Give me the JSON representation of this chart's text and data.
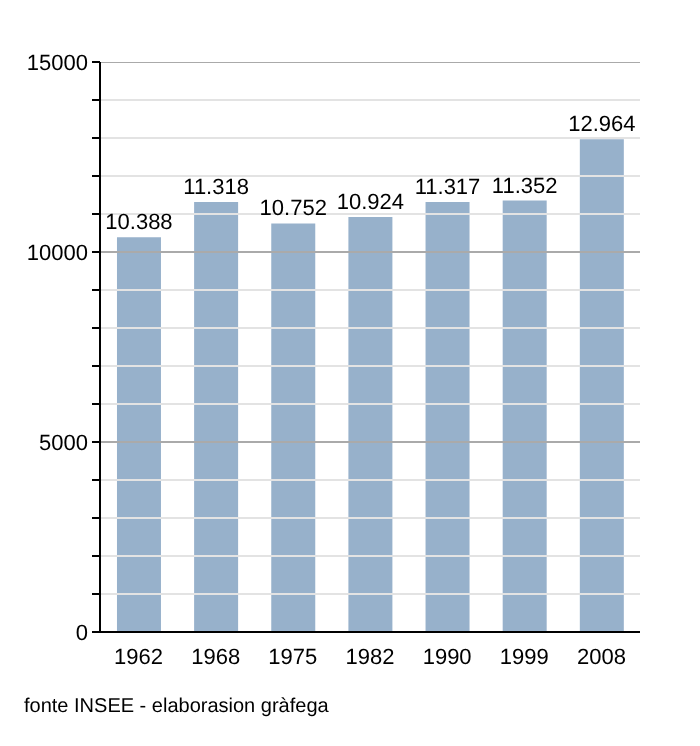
{
  "chart_data": {
    "type": "bar",
    "categories": [
      "1962",
      "1968",
      "1975",
      "1982",
      "1990",
      "1999",
      "2008"
    ],
    "values": [
      10388,
      11318,
      10752,
      10924,
      11317,
      11352,
      12964
    ],
    "value_labels": [
      "10.388",
      "11.318",
      "10.752",
      "10.924",
      "11.317",
      "11.352",
      "12.964"
    ],
    "color": "#97b1cb",
    "ylim": [
      0,
      15000
    ],
    "yticks": [
      0,
      {
        "value": 1000,
        "label": null
      },
      {
        "value": 2000,
        "label": null
      },
      {
        "value": 3000,
        "label": null
      },
      {
        "value": 4000,
        "label": null
      },
      5000,
      {
        "value": 6000,
        "label": null
      },
      {
        "value": 7000,
        "label": null
      },
      {
        "value": 8000,
        "label": null
      },
      {
        "value": 9000,
        "label": null
      },
      10000,
      {
        "value": 11000,
        "label": null
      },
      {
        "value": 12000,
        "label": null
      },
      {
        "value": 13000,
        "label": null
      },
      {
        "value": 14000,
        "label": null
      },
      15000
    ],
    "grid": "y",
    "annotations": [
      "fonte INSEE - elaborasion gràfega"
    ]
  }
}
